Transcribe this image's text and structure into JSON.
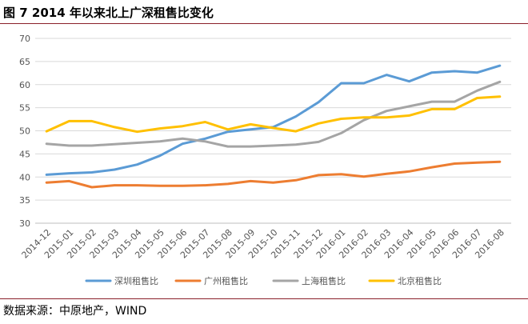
{
  "figure": {
    "title": "图 7 2014 年以来北上广深租售比变化",
    "source": "数据来源：中原地产，WIND"
  },
  "chart_data": {
    "type": "line",
    "title": "",
    "xlabel": "",
    "ylabel": "",
    "ylim": [
      30,
      70
    ],
    "yticks": [
      30,
      35,
      40,
      45,
      50,
      55,
      60,
      65,
      70
    ],
    "grid": "horizontal",
    "legend_position": "bottom",
    "categories": [
      "2014-12",
      "2015-01",
      "2015-02",
      "2015-03",
      "2015-04",
      "2015-05",
      "2015-06",
      "2015-07",
      "2015-08",
      "2015-09",
      "2015-10",
      "2015-11",
      "2015-12",
      "2016-01",
      "2016-02",
      "2016-03",
      "2016-04",
      "2016-05",
      "2016-06",
      "2016-07",
      "2016-08"
    ],
    "series": [
      {
        "name": "深圳租售比",
        "color": "#5b9bd5",
        "values": [
          40.5,
          40.8,
          41.0,
          41.6,
          42.7,
          44.6,
          47.2,
          48.3,
          49.8,
          50.3,
          50.8,
          53.1,
          56.2,
          60.3,
          60.3,
          62.1,
          60.7,
          62.6,
          62.9,
          62.6,
          64.1
        ]
      },
      {
        "name": "广州租售比",
        "color": "#ed7d31",
        "values": [
          38.8,
          39.1,
          37.8,
          38.2,
          38.2,
          38.1,
          38.1,
          38.2,
          38.5,
          39.1,
          38.8,
          39.3,
          40.4,
          40.6,
          40.1,
          40.7,
          41.2,
          42.1,
          42.9,
          43.1,
          43.3
        ]
      },
      {
        "name": "上海租售比",
        "color": "#a5a5a5",
        "values": [
          47.2,
          46.8,
          46.8,
          47.1,
          47.4,
          47.7,
          48.3,
          47.7,
          46.6,
          46.6,
          46.8,
          47.0,
          47.6,
          49.5,
          52.3,
          54.3,
          55.3,
          56.3,
          56.3,
          58.7,
          60.6
        ]
      },
      {
        "name": "北京租售比",
        "color": "#ffc000",
        "values": [
          49.9,
          52.1,
          52.1,
          50.8,
          49.8,
          50.5,
          51.0,
          51.9,
          50.3,
          51.4,
          50.6,
          49.9,
          51.6,
          52.6,
          52.9,
          52.9,
          53.3,
          54.7,
          54.7,
          57.1,
          57.4
        ]
      }
    ]
  }
}
